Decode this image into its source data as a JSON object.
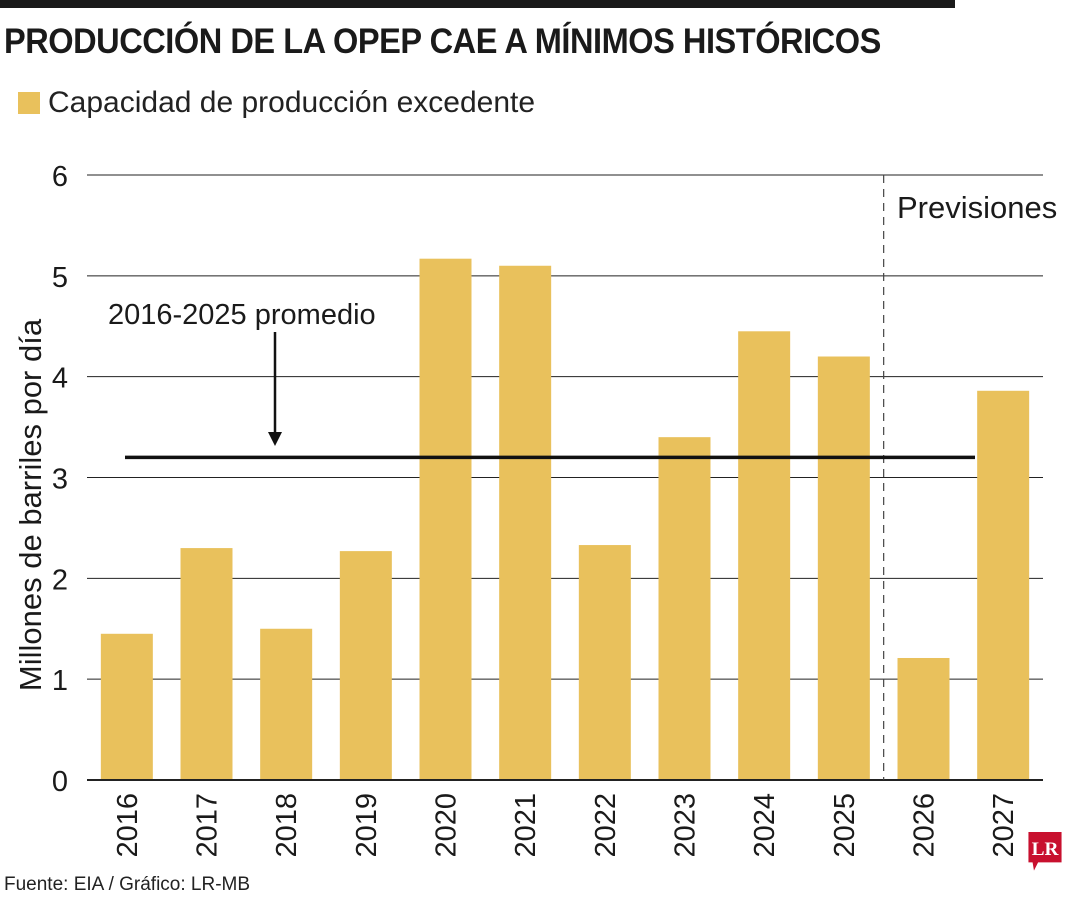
{
  "header": {
    "title": "PRODUCCIÓN DE LA OPEP CAE A MÍNIMOS HISTÓRICOS"
  },
  "colors": {
    "bar": "#e9c15c",
    "text": "#1a1a1a",
    "grid": "#222222",
    "logo": "#c8102e"
  },
  "chart_data": {
    "type": "bar",
    "categories": [
      "2016",
      "2017",
      "2018",
      "2019",
      "2020",
      "2021",
      "2022",
      "2023",
      "2024",
      "2025",
      "2026",
      "2027"
    ],
    "series": [
      {
        "name": "Capacidad de producción excedente",
        "values": [
          1.45,
          2.3,
          1.5,
          2.27,
          5.17,
          5.1,
          2.33,
          3.4,
          4.45,
          4.2,
          1.21,
          3.86
        ]
      }
    ],
    "ylabel": "Millones de barriles por día",
    "ylim": [
      0,
      6
    ],
    "yticks": [
      0,
      1,
      2,
      3,
      4,
      5,
      6
    ],
    "grid": true,
    "legend_position": "top-left",
    "average": {
      "value": 3.2,
      "label": "2016-2025 promedio"
    },
    "forecast": {
      "label": "Previsiones",
      "start_category": "2026"
    }
  },
  "footer": {
    "source": "Fuente: EIA / Gráfico: LR-MB",
    "logo_text": "LR"
  }
}
